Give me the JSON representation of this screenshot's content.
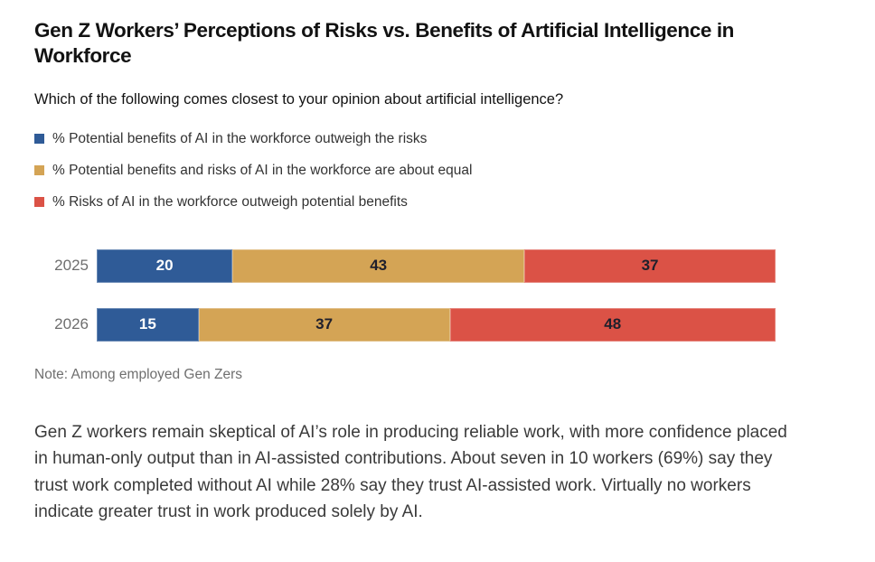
{
  "title": "Gen Z Workers’ Perceptions of Risks vs. Benefits of Artificial Intelligence in Workforce",
  "question": "Which of the following comes closest to your opinion about artificial intelligence?",
  "chart_data": {
    "type": "bar",
    "stacked": true,
    "orientation": "horizontal",
    "categories": [
      "2025",
      "2026"
    ],
    "series": [
      {
        "name": "% Potential benefits of AI in the workforce outweigh the risks",
        "color": "#2F5B97",
        "label_color": "#FFFFFF",
        "values": [
          20,
          15
        ]
      },
      {
        "name": "% Potential benefits and risks of AI in the workforce are about equal",
        "color": "#D4A455",
        "label_color": "#20202C",
        "values": [
          43,
          37
        ]
      },
      {
        "name": "% Risks of AI in the workforce outweigh potential benefits",
        "color": "#DB5246",
        "label_color": "#20202C",
        "values": [
          37,
          48
        ]
      }
    ],
    "xlim": [
      0,
      100
    ],
    "value_labels": true,
    "legend_position": "top-left",
    "grid": false,
    "category_label_color": "#6E6E6E"
  },
  "note": "Note: Among employed Gen Zers",
  "body": "Gen Z workers remain skeptical of AI’s role in producing reliable work, with more confidence placed in human-only output than in AI-assisted contributions. About seven in 10 workers (69%) say they trust work completed without AI while 28% say they trust AI-assisted work. Virtually no workers indicate greater trust in work produced solely by AI."
}
